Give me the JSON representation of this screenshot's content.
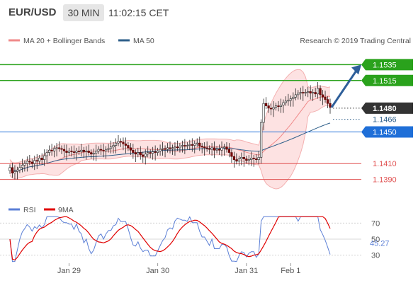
{
  "header": {
    "symbol": "EUR/USD",
    "timeframe": "30 MIN",
    "clock": "11:02:15 CET"
  },
  "legend": {
    "bollinger_label": "MA 20 + Bollinger Bands",
    "ma50_label": "MA 50",
    "bollinger_color": "#f08a8a",
    "ma50_color": "#2e5f8a"
  },
  "copyright": "Research © 2019 Trading Central",
  "rsi_legend": {
    "rsi_label": "RSI",
    "ma9_label": "9MA",
    "rsi_color": "#5b7fd6",
    "ma9_color": "#e00000"
  },
  "chart_data": {
    "type": "candlestick",
    "price_axis": {
      "min": 1.137,
      "max": 1.1555
    },
    "levels": [
      {
        "label": "1.1535",
        "value": 1.1535,
        "color": "#2aa21c",
        "style": "solid"
      },
      {
        "label": "1.1515",
        "value": 1.1515,
        "color": "#2aa21c",
        "style": "solid"
      },
      {
        "label": "1.1480",
        "value": 1.148,
        "color": "#333333",
        "style": "dotted"
      },
      {
        "label": "1.1466",
        "value": 1.1466,
        "color": "#2e5f8a",
        "style": "dotted"
      },
      {
        "label": "1.1450",
        "value": 1.145,
        "color": "#1f6fd8",
        "style": "solid"
      },
      {
        "label": "1.1410",
        "value": 1.141,
        "color": "#e05050",
        "style": "solid"
      },
      {
        "label": "1.1390",
        "value": 1.139,
        "color": "#e05050",
        "style": "solid"
      }
    ],
    "close": [
      1.1405,
      1.1398,
      1.14,
      1.1402,
      1.1405,
      1.1408,
      1.141,
      1.1413,
      1.1412,
      1.141,
      1.1414,
      1.1413,
      1.1417,
      1.1415,
      1.142,
      1.1424,
      1.1427,
      1.1426,
      1.1429,
      1.143,
      1.1429,
      1.1428,
      1.1426,
      1.1424,
      1.1426,
      1.1425,
      1.1424,
      1.1426,
      1.1425,
      1.1427,
      1.1425,
      1.1426,
      1.1424,
      1.1422,
      1.1423,
      1.1426,
      1.1428,
      1.1427,
      1.1426,
      1.1428,
      1.1429,
      1.1431,
      1.1433,
      1.1436,
      1.1438,
      1.1437,
      1.1435,
      1.1433,
      1.143,
      1.1427,
      1.1424,
      1.1422,
      1.1424,
      1.1421,
      1.1419,
      1.1422,
      1.1424,
      1.1423,
      1.1425,
      1.1424,
      1.1426,
      1.1428,
      1.1429,
      1.1428,
      1.143,
      1.1429,
      1.143,
      1.1431,
      1.143,
      1.1432,
      1.1433,
      1.1432,
      1.1433,
      1.1434,
      1.1433,
      1.1435,
      1.1436,
      1.1432,
      1.1431,
      1.143,
      1.1429,
      1.1428,
      1.143,
      1.1427,
      1.1428,
      1.1427,
      1.143,
      1.1431,
      1.1428,
      1.1424,
      1.1419,
      1.1415,
      1.1413,
      1.1416,
      1.1418,
      1.1416,
      1.1414,
      1.1415,
      1.1417,
      1.1416,
      1.1415,
      1.1418,
      1.1462,
      1.1486,
      1.1483,
      1.148,
      1.1479,
      1.1481,
      1.1483,
      1.1482,
      1.1484,
      1.1487,
      1.1489,
      1.149,
      1.1492,
      1.1494,
      1.1497,
      1.1499,
      1.15,
      1.1499,
      1.15,
      1.1501,
      1.1499,
      1.15,
      1.1498,
      1.1505,
      1.1497,
      1.1494,
      1.1491,
      1.1486,
      1.1481
    ],
    "rsi": {
      "ticks": [
        70,
        50,
        30
      ],
      "last_value_label": "45.27",
      "range": [
        20,
        80
      ]
    },
    "x_ticks": [
      "Jan 29",
      "Jan 30",
      "Jan 31",
      "Feb 1"
    ]
  }
}
